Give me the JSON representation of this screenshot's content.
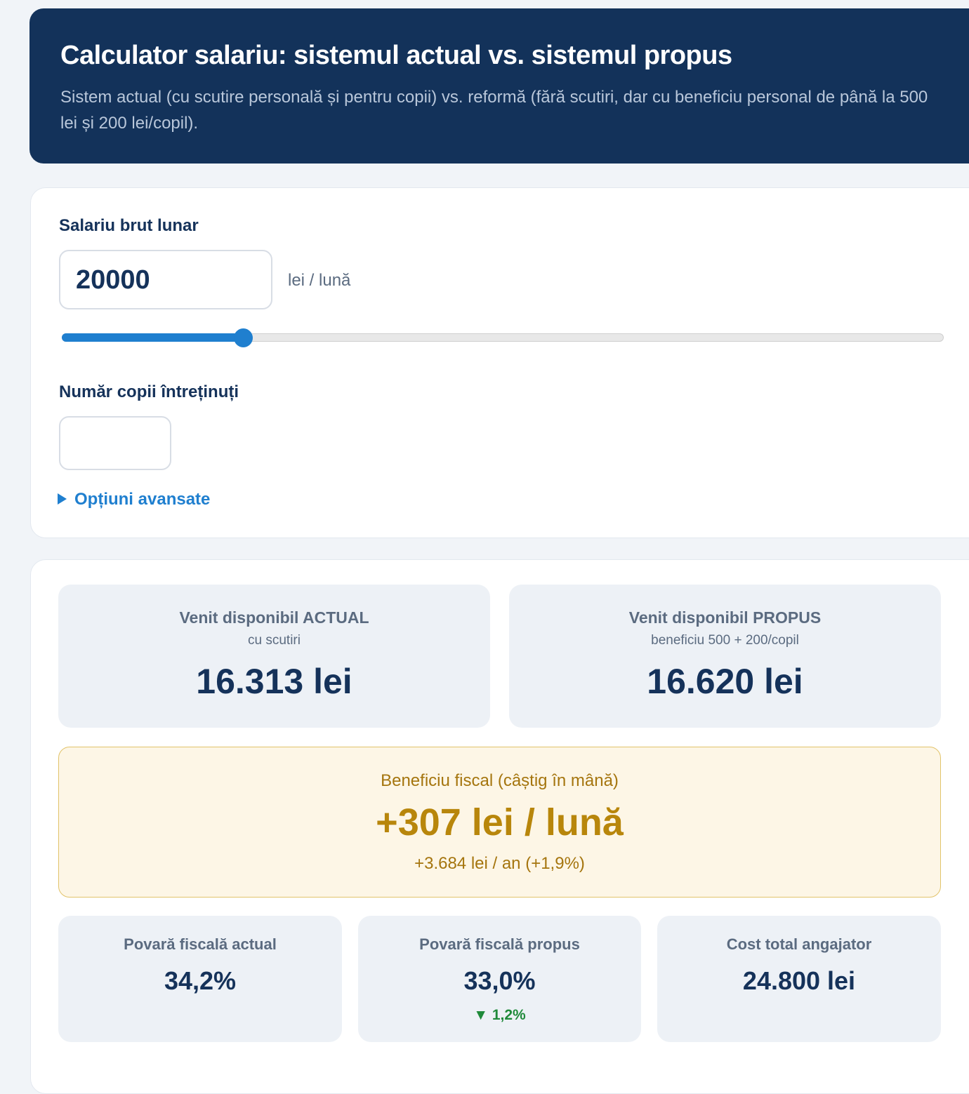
{
  "header": {
    "title": "Calculator salariu: sistemul actual vs. sistemul propus",
    "subtitle": "Sistem actual (cu scutire personală și pentru copii) vs. reformă (fără scutiri, dar cu beneficiu personal de până la 500 lei și 200 lei/copil)."
  },
  "form": {
    "salary_label": "Salariu brut lunar",
    "salary_value": "20000",
    "salary_unit": "lei / lună",
    "children_label": "Număr copii întreținuți",
    "advanced": "Opțiuni avansate"
  },
  "results": {
    "cards": [
      {
        "title": "Venit disponibil ACTUAL",
        "subtitle": "cu scutiri",
        "value": "16.313 lei"
      },
      {
        "title": "Venit disponibil PROPUS",
        "subtitle": "beneficiu 500 + 200/copil",
        "value": "16.620 lei"
      }
    ],
    "benefit": {
      "label": "Beneficiu fiscal (câștig în mână)",
      "value": "+307 lei / lună",
      "detail": "+3.684 lei / an (+1,9%)"
    },
    "stats": [
      {
        "label": "Povară fiscală actual",
        "value": "34,2%"
      },
      {
        "label": "Povară fiscală propus",
        "value": "33,0%",
        "change": "▼ 1,2%"
      },
      {
        "label": "Cost total angajator",
        "value": "24.800 lei"
      }
    ]
  }
}
